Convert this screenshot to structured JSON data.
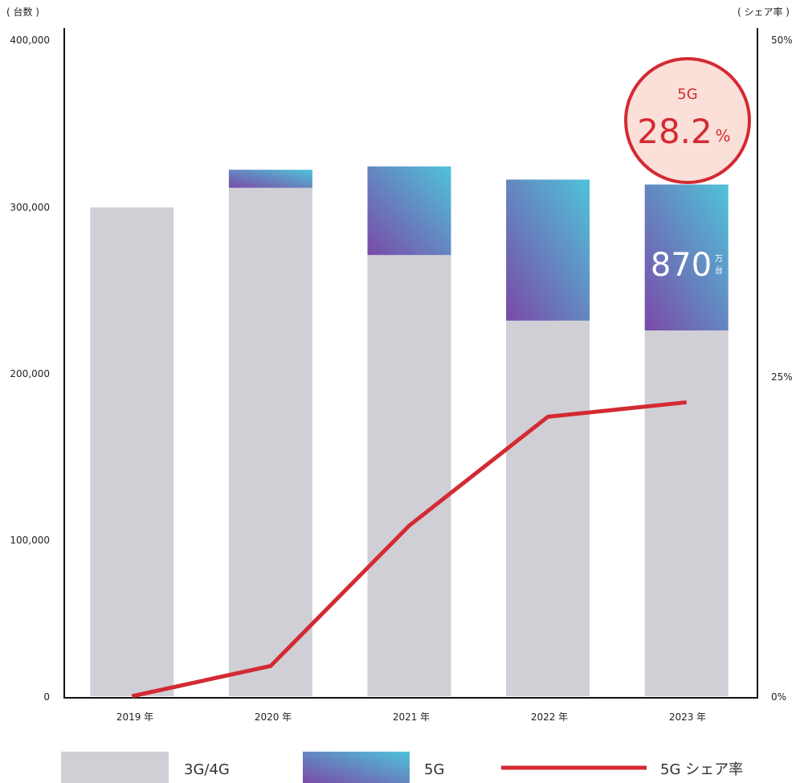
{
  "chart_data": {
    "type": "bar",
    "stacked": true,
    "categories": [
      "2019 年",
      "2020 年",
      "2021 年",
      "2022 年",
      "2023 年"
    ],
    "series": [
      {
        "name": "3G/4G",
        "values": [
          298000,
          310000,
          269000,
          229000,
          223000
        ],
        "color": "#d0cfd6"
      },
      {
        "name": "5G",
        "values": [
          0,
          11000,
          54000,
          86000,
          89000
        ],
        "gradient": [
          "#7a4aa8",
          "#4fc3d9"
        ]
      },
      {
        "name": "5G シェア率",
        "type": "line",
        "axis": "right",
        "values": [
          0,
          2.3,
          13.0,
          21.3,
          22.4
        ],
        "color": "#d42a33"
      }
    ],
    "y_left": {
      "unit_label": "( 台数 )",
      "ticks": [
        "400,000",
        "300,000",
        "200,000",
        "100,000",
        "0"
      ],
      "ylim": [
        0,
        400000
      ]
    },
    "y_right": {
      "unit_label": "( シェア率 )",
      "ticks": [
        "50%",
        "25%",
        "0%"
      ],
      "ylim": [
        0,
        50
      ]
    },
    "grid": false,
    "legend": {
      "position": "bottom"
    },
    "annotations": {
      "bar_label_value": "870",
      "bar_label_unit_top": "万",
      "bar_label_unit_bottom": "台",
      "circle_title": "5G",
      "circle_value": "28.2",
      "circle_unit": "%"
    }
  },
  "colors": {
    "accent_red": "#d42a33",
    "circle_fill": "#fae0d8",
    "gray_bar": "#d0cfd6",
    "gradient_purple": "#7a4aa8",
    "gradient_cyan": "#4fc3d9"
  }
}
